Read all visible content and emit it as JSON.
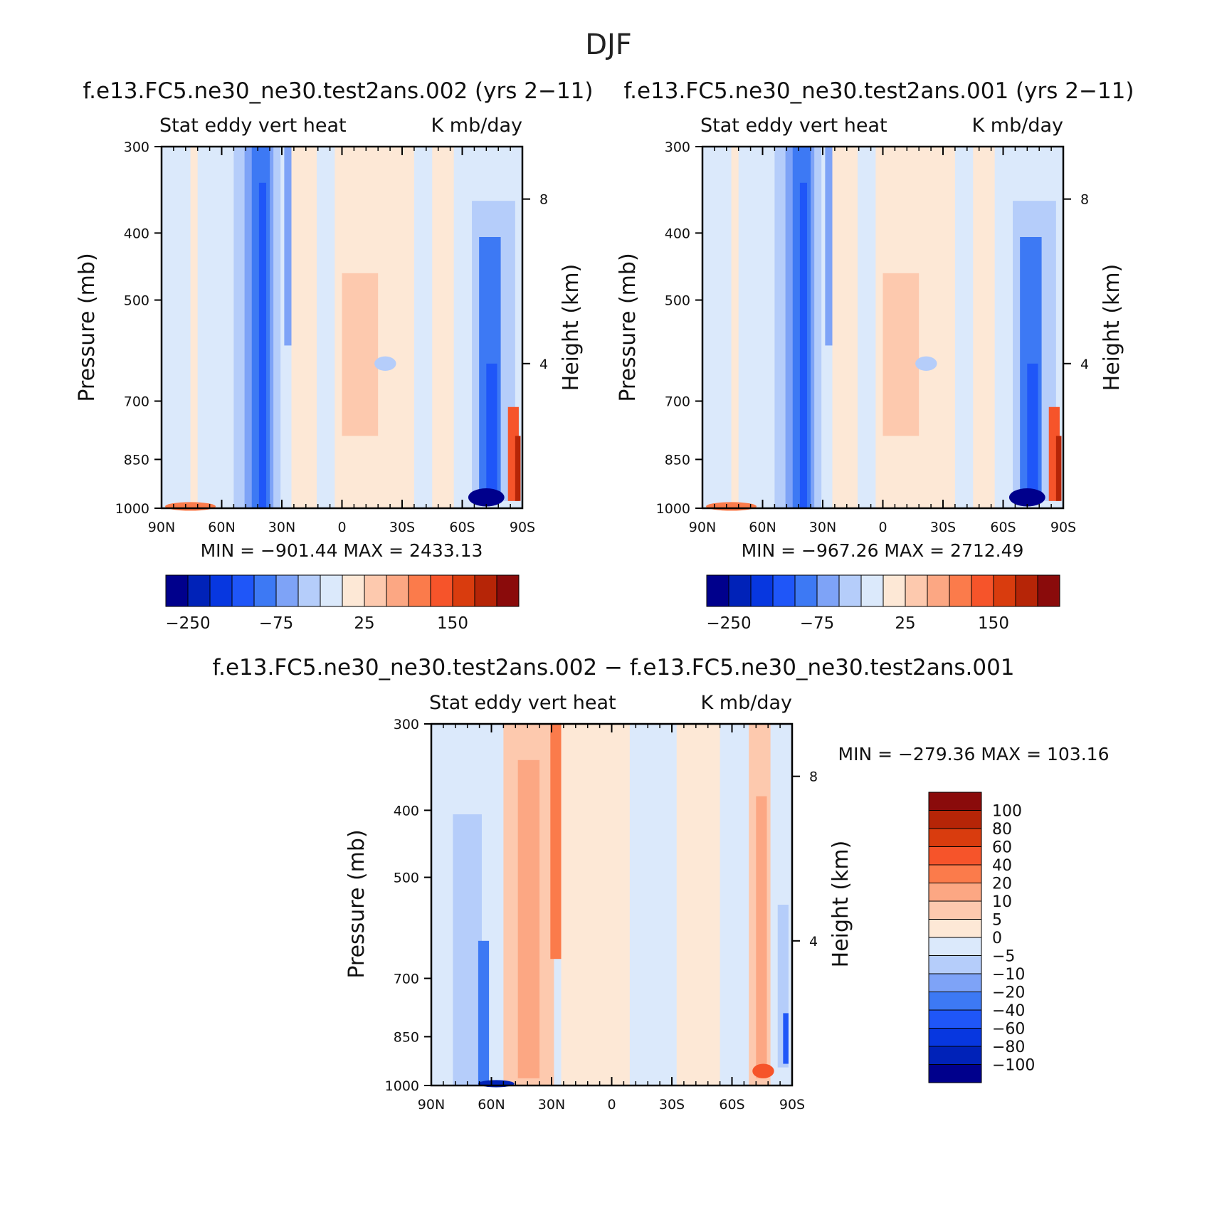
{
  "figure": {
    "season": "DJF"
  },
  "chart_data": [
    {
      "type": "heatmap",
      "title": "f.e13.FC5.ne30_ne30.test2ans.002 (yrs 2−11)",
      "subtitle_left": "Stat eddy vert heat",
      "subtitle_right": "K mb/day",
      "xlabel": "",
      "ylabel": "Pressure (mb)",
      "y2label": "Height (km)",
      "x_ticks": [
        "90N",
        "60N",
        "30N",
        "0",
        "30S",
        "60S",
        "90S"
      ],
      "y_ticks": [
        "300",
        "400",
        "500",
        "700",
        "850",
        "1000"
      ],
      "y2_ticks": [
        "8",
        "4"
      ],
      "stats": "MIN = −901.44   MAX = 2433.13",
      "colorbar_labels": [
        "−250",
        "−75",
        "25",
        "150"
      ]
    },
    {
      "type": "heatmap",
      "title": "f.e13.FC5.ne30_ne30.test2ans.001 (yrs 2−11)",
      "subtitle_left": "Stat eddy vert heat",
      "subtitle_right": "K mb/day",
      "xlabel": "",
      "ylabel": "Pressure (mb)",
      "y2label": "Height (km)",
      "x_ticks": [
        "90N",
        "60N",
        "30N",
        "0",
        "30S",
        "60S",
        "90S"
      ],
      "y_ticks": [
        "300",
        "400",
        "500",
        "700",
        "850",
        "1000"
      ],
      "y2_ticks": [
        "8",
        "4"
      ],
      "stats": "MIN = −967.26   MAX = 2712.49",
      "colorbar_labels": [
        "−250",
        "−75",
        "25",
        "150"
      ]
    },
    {
      "type": "heatmap",
      "title": "f.e13.FC5.ne30_ne30.test2ans.002 − f.e13.FC5.ne30_ne30.test2ans.001",
      "subtitle_left": "Stat eddy vert heat",
      "subtitle_right": "K mb/day",
      "xlabel": "",
      "ylabel": "Pressure (mb)",
      "y2label": "Height (km)",
      "x_ticks": [
        "90N",
        "60N",
        "30N",
        "0",
        "30S",
        "60S",
        "90S"
      ],
      "y_ticks": [
        "300",
        "400",
        "500",
        "700",
        "850",
        "1000"
      ],
      "y2_ticks": [
        "8",
        "4"
      ],
      "stats": "MIN = −279.36   MAX = 103.16",
      "colorbar_labels": [
        "100",
        "80",
        "60",
        "40",
        "20",
        "10",
        "5",
        "0",
        "−5",
        "−10",
        "−20",
        "−40",
        "−60",
        "−80",
        "−100"
      ]
    }
  ],
  "colors": {
    "palette_16": [
      "#00008c",
      "#0022b8",
      "#0737e0",
      "#1f56f8",
      "#3d79f4",
      "#7ea3f7",
      "#b5cdfa",
      "#dbe9fb",
      "#fde8d6",
      "#fdc9ae",
      "#fca783",
      "#fb7b4b",
      "#f6542a",
      "#d93c0e",
      "#b62507",
      "#8a0b0b"
    ]
  }
}
